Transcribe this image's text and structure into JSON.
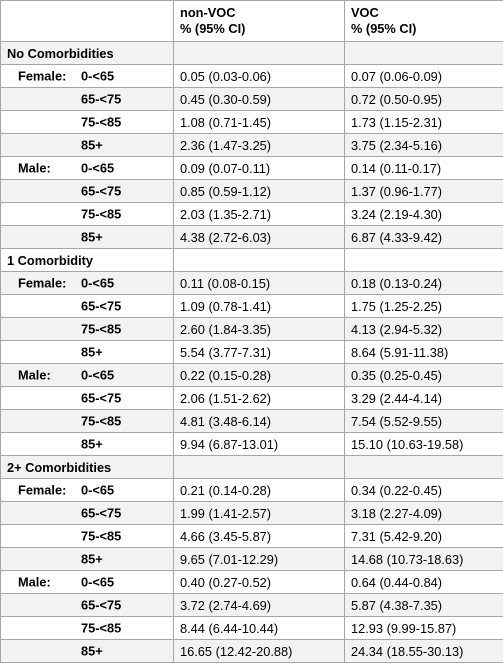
{
  "header": {
    "col1": "",
    "col2_line1": "non-VOC",
    "col2_line2": "% (95% CI)",
    "col3_line1": "VOC",
    "col3_line2": "% (95% CI)"
  },
  "sections": [
    {
      "title": "No Comorbidities",
      "rows": [
        {
          "sex": "Female:",
          "age": "0-<65",
          "non_voc": "0.05 (0.03-0.06)",
          "voc": "0.07 (0.06-0.09)"
        },
        {
          "sex": "",
          "age": "65-<75",
          "non_voc": "0.45 (0.30-0.59)",
          "voc": "0.72 (0.50-0.95)"
        },
        {
          "sex": "",
          "age": "75-<85",
          "non_voc": "1.08 (0.71-1.45)",
          "voc": "1.73 (1.15-2.31)"
        },
        {
          "sex": "",
          "age": "85+",
          "non_voc": "2.36 (1.47-3.25)",
          "voc": "3.75 (2.34-5.16)"
        },
        {
          "sex": "Male:",
          "age": "0-<65",
          "non_voc": "0.09 (0.07-0.11)",
          "voc": "0.14 (0.11-0.17)"
        },
        {
          "sex": "",
          "age": "65-<75",
          "non_voc": "0.85 (0.59-1.12)",
          "voc": "1.37 (0.96-1.77)"
        },
        {
          "sex": "",
          "age": "75-<85",
          "non_voc": "2.03 (1.35-2.71)",
          "voc": "3.24 (2.19-4.30)"
        },
        {
          "sex": "",
          "age": "85+",
          "non_voc": "4.38 (2.72-6.03)",
          "voc": "6.87 (4.33-9.42)"
        }
      ]
    },
    {
      "title": "1 Comorbidity",
      "rows": [
        {
          "sex": "Female:",
          "age": "0-<65",
          "non_voc": "0.11 (0.08-0.15)",
          "voc": "0.18 (0.13-0.24)"
        },
        {
          "sex": "",
          "age": "65-<75",
          "non_voc": "1.09 (0.78-1.41)",
          "voc": "1.75 (1.25-2.25)"
        },
        {
          "sex": "",
          "age": "75-<85",
          "non_voc": "2.60 (1.84-3.35)",
          "voc": "4.13 (2.94-5.32)"
        },
        {
          "sex": "",
          "age": "85+",
          "non_voc": "5.54 (3.77-7.31)",
          "voc": "8.64 (5.91-11.38)"
        },
        {
          "sex": "Male:",
          "age": "0-<65",
          "non_voc": "0.22 (0.15-0.28)",
          "voc": "0.35 (0.25-0.45)"
        },
        {
          "sex": "",
          "age": "65-<75",
          "non_voc": "2.06 (1.51-2.62)",
          "voc": "3.29 (2.44-4.14)"
        },
        {
          "sex": "",
          "age": "75-<85",
          "non_voc": "4.81 (3.48-6.14)",
          "voc": "7.54 (5.52-9.55)"
        },
        {
          "sex": "",
          "age": "85+",
          "non_voc": "9.94 (6.87-13.01)",
          "voc": "15.10 (10.63-19.58)"
        }
      ]
    },
    {
      "title": "2+ Comorbidities",
      "rows": [
        {
          "sex": "Female:",
          "age": "0-<65",
          "non_voc": "0.21 (0.14-0.28)",
          "voc": "0.34 (0.22-0.45)"
        },
        {
          "sex": "",
          "age": "65-<75",
          "non_voc": "1.99 (1.41-2.57)",
          "voc": "3.18 (2.27-4.09)"
        },
        {
          "sex": "",
          "age": "75-<85",
          "non_voc": "4.66 (3.45-5.87)",
          "voc": "7.31 (5.42-9.20)"
        },
        {
          "sex": "",
          "age": "85+",
          "non_voc": "9.65 (7.01-12.29)",
          "voc": "14.68 (10.73-18.63)"
        },
        {
          "sex": "Male:",
          "age": "0-<65",
          "non_voc": "0.40 (0.27-0.52)",
          "voc": "0.64 (0.44-0.84)"
        },
        {
          "sex": "",
          "age": "65-<75",
          "non_voc": "3.72 (2.74-4.69)",
          "voc": "5.87 (4.38-7.35)"
        },
        {
          "sex": "",
          "age": "75-<85",
          "non_voc": "8.44 (6.44-10.44)",
          "voc": "12.93 (9.99-15.87)"
        },
        {
          "sex": "",
          "age": "85+",
          "non_voc": "16.65 (12.42-20.88)",
          "voc": "24.34 (18.55-30.13)"
        }
      ]
    }
  ],
  "colors": {
    "border": "#a6a6a6",
    "alt_row": "#f2f2f2",
    "text": "#000000"
  }
}
